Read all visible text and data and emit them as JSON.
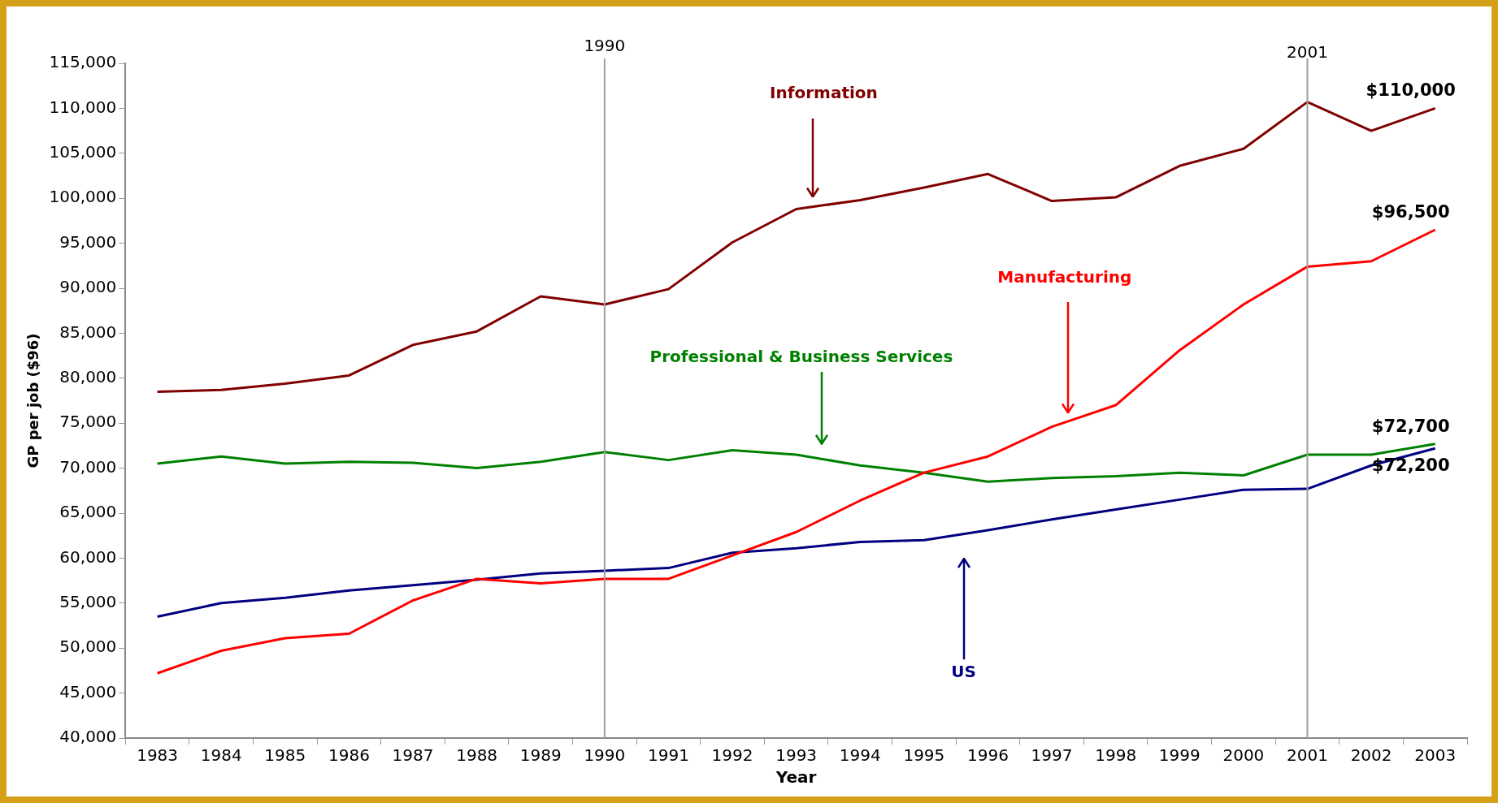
{
  "chart_data": {
    "type": "line",
    "xlabel": "Year",
    "ylabel": "GP per job ($96)",
    "categories": [
      "1983",
      "1984",
      "1985",
      "1986",
      "1987",
      "1988",
      "1989",
      "1990",
      "1991",
      "1992",
      "1993",
      "1994",
      "1995",
      "1996",
      "1997",
      "1998",
      "1999",
      "2000",
      "2001",
      "2002",
      "2003"
    ],
    "ylim": [
      40000,
      115000
    ],
    "yticks": [
      {
        "value": 40000,
        "label": "40,000"
      },
      {
        "value": 45000,
        "label": "45,000"
      },
      {
        "value": 50000,
        "label": "50,000"
      },
      {
        "value": 55000,
        "label": "55,000"
      },
      {
        "value": 60000,
        "label": "60,000"
      },
      {
        "value": 65000,
        "label": "65,000"
      },
      {
        "value": 70000,
        "label": "70,000"
      },
      {
        "value": 75000,
        "label": "75,000"
      },
      {
        "value": 80000,
        "label": "80,000"
      },
      {
        "value": 85000,
        "label": "85,000"
      },
      {
        "value": 90000,
        "label": "90,000"
      },
      {
        "value": 95000,
        "label": "95,000"
      },
      {
        "value": 100000,
        "label": "100,000"
      },
      {
        "value": 105000,
        "label": "105,000"
      },
      {
        "value": 110000,
        "label": "110,000"
      },
      {
        "value": 115000,
        "label": "115,000"
      }
    ],
    "marker": "none",
    "series": [
      {
        "name": "Information",
        "color": "#800000",
        "values": [
          78500,
          78700,
          79400,
          80300,
          83700,
          85200,
          89100,
          88200,
          89900,
          95100,
          98800,
          99800,
          101200,
          102700,
          99700,
          100100,
          103600,
          105500,
          110700,
          107500,
          110000
        ],
        "value_labels": [
          null,
          null,
          null,
          null,
          null,
          null,
          null,
          null,
          null,
          null,
          null,
          null,
          null,
          null,
          null,
          null,
          null,
          null,
          null,
          null,
          "$110,000"
        ]
      },
      {
        "name": "Manufacturing",
        "color": "#ff0000",
        "values": [
          47200,
          49700,
          51100,
          51600,
          55300,
          57700,
          57200,
          57700,
          57700,
          60300,
          62900,
          66400,
          69500,
          71300,
          74600,
          77000,
          83100,
          88200,
          92400,
          93000,
          96500
        ],
        "value_labels": [
          null,
          null,
          null,
          null,
          null,
          null,
          null,
          null,
          null,
          null,
          null,
          null,
          null,
          null,
          null,
          null,
          null,
          null,
          null,
          null,
          "$96,500"
        ]
      },
      {
        "name": "Professional & Business Services",
        "color": "#008000",
        "values": [
          70500,
          71300,
          70500,
          70700,
          70600,
          70000,
          70700,
          71800,
          70900,
          72000,
          71500,
          70300,
          69500,
          68500,
          68900,
          69100,
          69500,
          69200,
          71500,
          71500,
          72700
        ],
        "value_labels": [
          null,
          null,
          null,
          null,
          null,
          null,
          null,
          null,
          null,
          null,
          null,
          null,
          null,
          null,
          null,
          null,
          null,
          null,
          null,
          null,
          "$72,700"
        ]
      },
      {
        "name": "US",
        "color": "#000080",
        "values": [
          53500,
          55000,
          55600,
          56400,
          57000,
          57600,
          58300,
          58600,
          58900,
          60600,
          61100,
          61800,
          62000,
          63100,
          64300,
          65400,
          66500,
          67600,
          67700,
          70300,
          72200
        ],
        "value_labels": [
          null,
          null,
          null,
          null,
          null,
          null,
          null,
          null,
          null,
          null,
          null,
          null,
          null,
          null,
          null,
          null,
          null,
          null,
          null,
          null,
          "$72,200"
        ]
      }
    ],
    "ref_lines": [
      {
        "axis": "x",
        "value": "1990",
        "label": "1990",
        "color": "#a0a0a0"
      },
      {
        "axis": "x",
        "value": "2001",
        "label": "2001",
        "color": "#a0a0a0"
      }
    ]
  }
}
